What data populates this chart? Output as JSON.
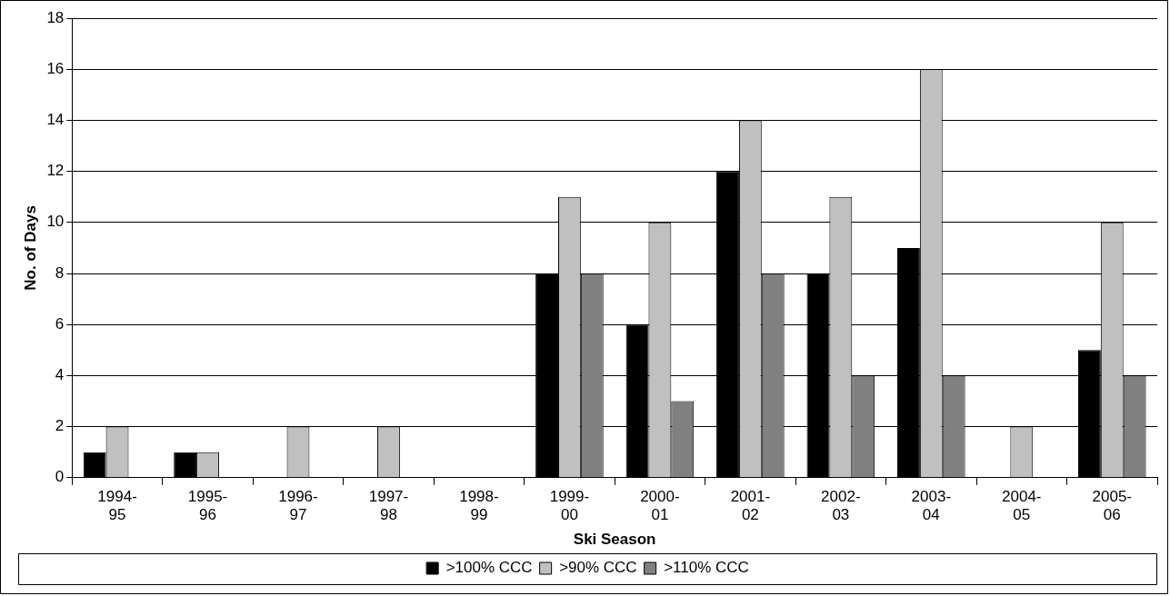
{
  "chart_data": {
    "type": "bar",
    "xlabel": "Ski Season",
    "ylabel": "No. of Days",
    "categories": [
      "1994-95",
      "1995-96",
      "1996-97",
      "1997-98",
      "1998-99",
      "1999-00",
      "2000-01",
      "2001-02",
      "2002-03",
      "2003-04",
      "2004-05",
      "2005-06"
    ],
    "series": [
      {
        "name": ">100% CCC",
        "color": "#000000",
        "values": [
          1,
          1,
          0,
          0,
          0,
          8,
          6,
          12,
          8,
          9,
          0,
          5
        ]
      },
      {
        "name": ">90% CCC",
        "color": "#c0c0c0",
        "values": [
          2,
          1,
          2,
          2,
          0,
          11,
          10,
          14,
          11,
          16,
          2,
          10
        ]
      },
      {
        "name": ">110% CCC",
        "color": "#808080",
        "values": [
          0,
          0,
          0,
          0,
          0,
          8,
          3,
          8,
          4,
          4,
          0,
          4
        ]
      }
    ],
    "ylim": [
      0,
      18
    ],
    "yticks": [
      0,
      2,
      4,
      6,
      8,
      10,
      12,
      14,
      16,
      18
    ],
    "grid": "y",
    "legend": "bottom"
  }
}
